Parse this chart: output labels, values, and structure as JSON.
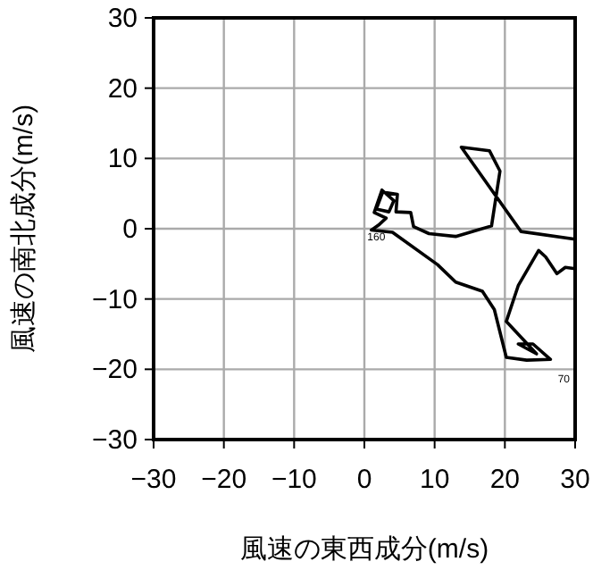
{
  "chart_data": {
    "type": "line",
    "xlabel": "風速の東西成分(m/s)",
    "ylabel": "風速の南北成分(m/s)",
    "xlim": [
      -30,
      30
    ],
    "ylim": [
      -30,
      30
    ],
    "xticks": [
      -30,
      -20,
      -10,
      0,
      10,
      20,
      30
    ],
    "yticks": [
      -30,
      -20,
      -10,
      0,
      10,
      20,
      30
    ],
    "grid": true,
    "series": [
      {
        "color": "#000000",
        "x": [
          30,
          22.3,
          13.8,
          17.8,
          19.3,
          18.1,
          13,
          9.2,
          7,
          6.6,
          4.5,
          4.7,
          2.6,
          1.7,
          3.5,
          4.2,
          2.5,
          1.4,
          3.1,
          2,
          1.0,
          4,
          10.4,
          13,
          16.8,
          18.5,
          20.2,
          23.1,
          26.5,
          24,
          21.9,
          24.5,
          20.2,
          21.9,
          24.8,
          25.8,
          27.4,
          28.6,
          30
        ],
        "values": [
          -1.5,
          -0.4,
          11.6,
          11.1,
          8.2,
          0.4,
          -1.1,
          -0.7,
          0.3,
          2.3,
          2.4,
          4.9,
          5.2,
          2.8,
          2.4,
          4.0,
          5.5,
          2.3,
          1.5,
          0.5,
          -0.2,
          -0.5,
          -5.1,
          -7.6,
          -8.9,
          -11.5,
          -18.3,
          -18.7,
          -18.6,
          -16.4,
          -16.4,
          -17.8,
          -13.2,
          -8.1,
          -3.1,
          -4.0,
          -6.4,
          -5.5,
          -5.7
        ]
      }
    ],
    "annotations": [
      {
        "text": "160",
        "x": 1.7,
        "y": -1.1
      },
      "70"
    ]
  }
}
